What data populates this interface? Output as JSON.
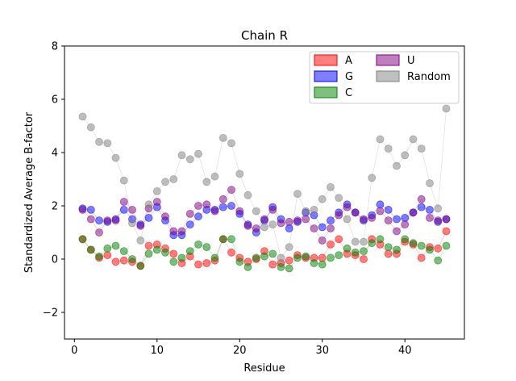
{
  "chart_data": {
    "type": "scatter",
    "title": "Chain R",
    "xlabel": "Residue",
    "ylabel": "Standardized Average B-factor",
    "xlim": [
      -1.2,
      47.2
    ],
    "ylim": [
      -3,
      8
    ],
    "xticks": [
      0,
      10,
      20,
      30,
      40
    ],
    "yticks": [
      -2,
      0,
      2,
      4,
      6,
      8
    ],
    "legend_position": "upper right",
    "legend_columns": 2,
    "x": [
      1,
      2,
      3,
      4,
      5,
      6,
      7,
      8,
      9,
      10,
      11,
      12,
      13,
      14,
      15,
      16,
      17,
      18,
      19,
      20,
      21,
      22,
      23,
      24,
      25,
      26,
      27,
      28,
      29,
      30,
      31,
      32,
      33,
      34,
      35,
      36,
      37,
      38,
      39,
      40,
      41,
      42,
      43,
      44,
      45
    ],
    "series": [
      {
        "name": "A",
        "color": "#ff0000",
        "values": [
          0.75,
          0.35,
          0.05,
          0.15,
          -0.1,
          -0.05,
          -0.1,
          -0.25,
          0.5,
          0.55,
          0.4,
          0.2,
          -0.15,
          0.1,
          -0.2,
          -0.15,
          -0.05,
          0.75,
          0.25,
          0.05,
          -0.1,
          0.0,
          0.3,
          -0.2,
          -0.15,
          -0.05,
          0.15,
          0.05,
          0.05,
          0.05,
          0.55,
          0.75,
          0.2,
          0.15,
          0.0,
          0.75,
          0.55,
          0.2,
          0.2,
          0.65,
          0.55,
          0.05,
          0.45,
          0.4,
          1.05
        ]
      },
      {
        "name": "G",
        "color": "#0000ff",
        "values": [
          1.9,
          1.85,
          1.45,
          1.4,
          1.5,
          1.85,
          1.5,
          1.3,
          1.55,
          1.95,
          1.45,
          0.9,
          0.9,
          1.3,
          1.6,
          1.85,
          1.85,
          1.95,
          2.0,
          1.7,
          1.3,
          1.0,
          1.45,
          1.95,
          1.5,
          1.15,
          1.4,
          1.75,
          1.65,
          1.2,
          1.45,
          1.75,
          2.05,
          1.75,
          1.45,
          1.65,
          2.05,
          1.85,
          1.5,
          1.55,
          1.75,
          1.95,
          1.85,
          1.4,
          1.5
        ]
      },
      {
        "name": "C",
        "color": "#008000",
        "values": [
          0.75,
          0.35,
          0.1,
          0.4,
          0.5,
          0.3,
          0.0,
          -0.25,
          0.2,
          0.35,
          0.25,
          -0.1,
          0.05,
          0.3,
          0.55,
          0.45,
          0.05,
          0.75,
          0.75,
          -0.1,
          -0.3,
          0.05,
          0.1,
          0.2,
          -0.3,
          -0.35,
          0.05,
          0.1,
          -0.15,
          -0.2,
          0.05,
          0.15,
          0.4,
          0.25,
          0.3,
          0.6,
          0.75,
          0.45,
          0.35,
          0.75,
          0.6,
          0.5,
          0.35,
          -0.05,
          0.5
        ]
      },
      {
        "name": "U",
        "color": "#800080",
        "values": [
          1.85,
          1.5,
          1.0,
          1.45,
          1.45,
          2.15,
          1.85,
          1.25,
          1.9,
          2.15,
          1.6,
          1.05,
          1.05,
          1.7,
          2.0,
          2.05,
          1.8,
          2.25,
          2.6,
          1.8,
          1.25,
          1.15,
          1.5,
          1.85,
          1.35,
          1.4,
          1.45,
          1.5,
          1.15,
          0.7,
          1.15,
          1.65,
          1.95,
          1.75,
          1.5,
          1.55,
          1.8,
          1.45,
          1.05,
          1.3,
          1.75,
          2.25,
          1.55,
          1.45,
          1.5
        ]
      },
      {
        "name": "Random",
        "color": "#808080",
        "values": [
          5.35,
          4.95,
          4.4,
          4.35,
          3.8,
          2.95,
          1.35,
          0.7,
          2.05,
          2.55,
          2.9,
          3.0,
          3.9,
          3.75,
          3.95,
          2.9,
          3.1,
          4.55,
          4.35,
          3.2,
          2.4,
          1.8,
          1.2,
          1.3,
          0.05,
          0.45,
          2.45,
          1.8,
          1.85,
          2.25,
          2.7,
          2.3,
          1.5,
          0.65,
          0.65,
          3.05,
          4.5,
          4.15,
          3.5,
          3.9,
          4.5,
          4.15,
          2.85,
          1.9,
          5.65
        ]
      }
    ]
  }
}
